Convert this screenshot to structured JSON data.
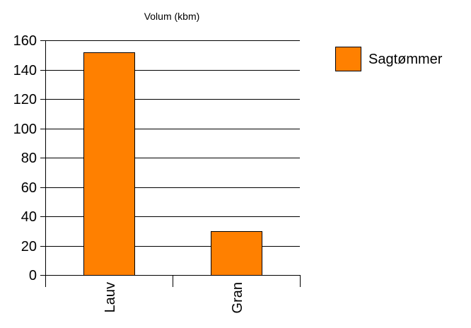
{
  "chart_data": {
    "type": "bar",
    "title": "Volum (kbm)",
    "xlabel": "",
    "ylabel": "",
    "categories": [
      "Lauv",
      "Gran"
    ],
    "series": [
      {
        "name": "Sagtømmer",
        "values": [
          152,
          30
        ],
        "color": "#FF8000"
      }
    ],
    "ylim": [
      0,
      160
    ],
    "yticks": [
      0,
      20,
      40,
      60,
      80,
      100,
      120,
      140,
      160
    ],
    "grid": true,
    "legend": {
      "position": "right"
    },
    "x_tick_label_rotation": "vertical",
    "bar_stroke_color": "#000000",
    "grid_color": "#000000"
  }
}
